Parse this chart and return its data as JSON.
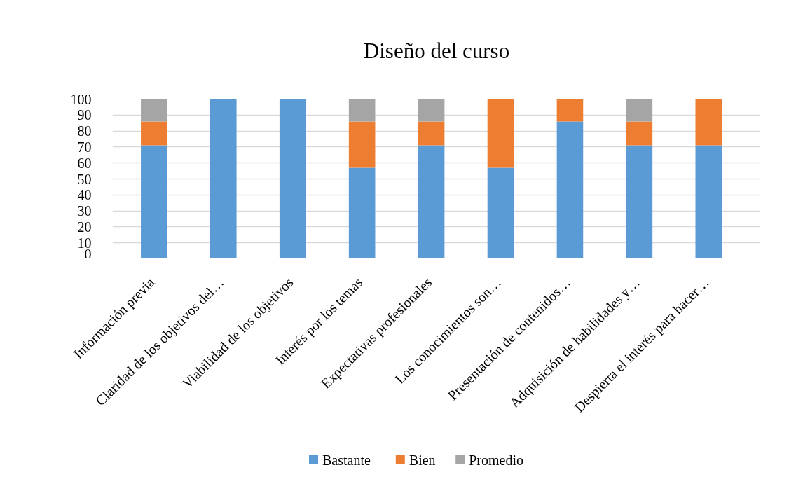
{
  "chart_data": {
    "type": "bar",
    "title": "Diseño del curso",
    "categories": [
      "Información previa",
      "Claridad de los objetivos del…",
      "Viabilidad de los objetivos",
      "Interés por los temas",
      "Expectativas profesionales",
      "Los conocimientos son…",
      "Presentación de contenidos…",
      "Adquisición de habilidades y…",
      "Despierta el interés para hacer…"
    ],
    "series": [
      {
        "name": "Bastante",
        "color": "#5b9bd5",
        "values": [
          71,
          100,
          100,
          57,
          71,
          57,
          86,
          71,
          71
        ]
      },
      {
        "name": "Bien",
        "color": "#ed7d31",
        "values": [
          15,
          0,
          0,
          29,
          15,
          43,
          14,
          15,
          29
        ]
      },
      {
        "name": "Promedio",
        "color": "#a5a5a5",
        "values": [
          14,
          0,
          0,
          14,
          14,
          0,
          0,
          14,
          0
        ]
      }
    ],
    "stacked": true,
    "ylim": [
      0,
      100
    ],
    "yticks": [
      0,
      10,
      20,
      30,
      40,
      50,
      60,
      70,
      80,
      90,
      100
    ],
    "grid": "y",
    "legend": "bottom"
  }
}
